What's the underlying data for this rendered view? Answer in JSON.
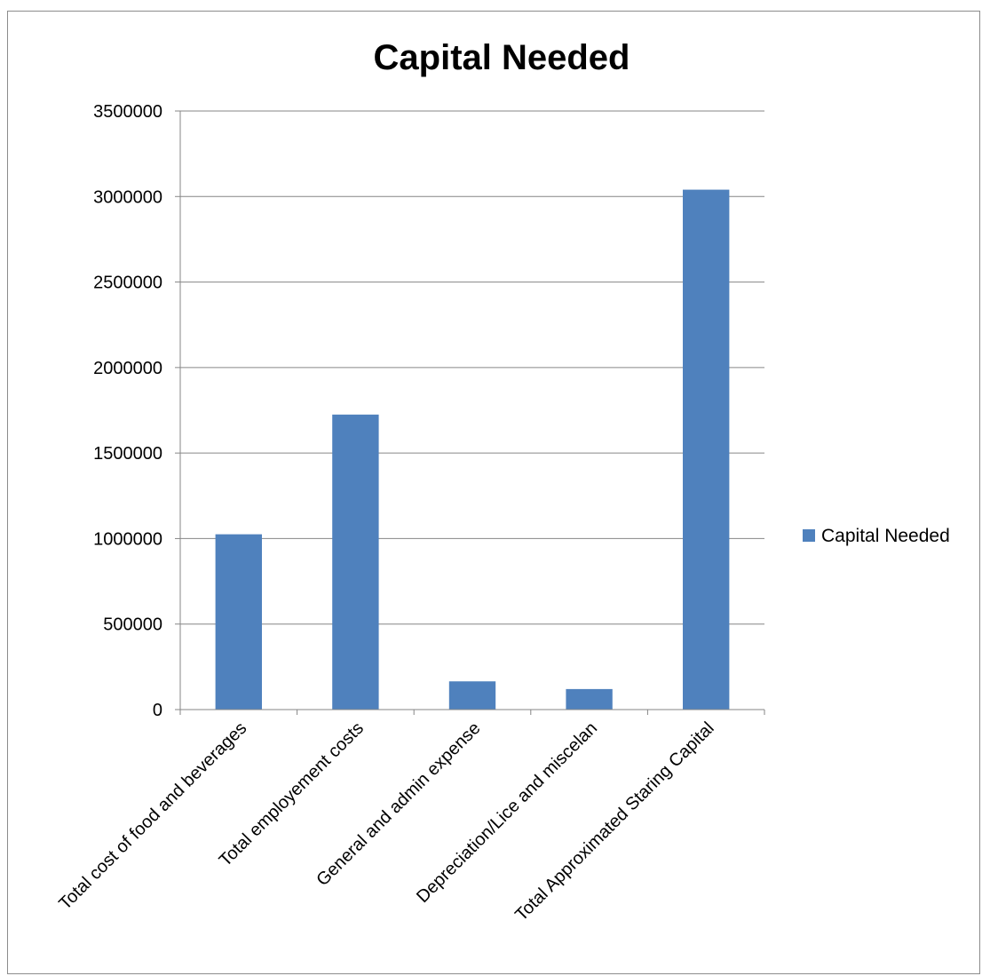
{
  "chart_data": {
    "type": "bar",
    "title": "Capital Needed",
    "xlabel": "",
    "ylabel": "",
    "categories": [
      "Total cost of food and beverages",
      "Total employement costs",
      "General and admin expense",
      "Depreciation/Lice and miscelan",
      "Total Approximated Staring Capital"
    ],
    "series": [
      {
        "name": "Capital Needed",
        "values": [
          1025000,
          1725000,
          165000,
          120000,
          3040000
        ],
        "color": "#4F81BD"
      }
    ],
    "ylim": [
      0,
      3500000
    ],
    "yticks": [
      "0",
      "500000",
      "1000000",
      "1500000",
      "2000000",
      "2500000",
      "3000000",
      "3500000"
    ],
    "grid": true,
    "legend_position": "right"
  }
}
